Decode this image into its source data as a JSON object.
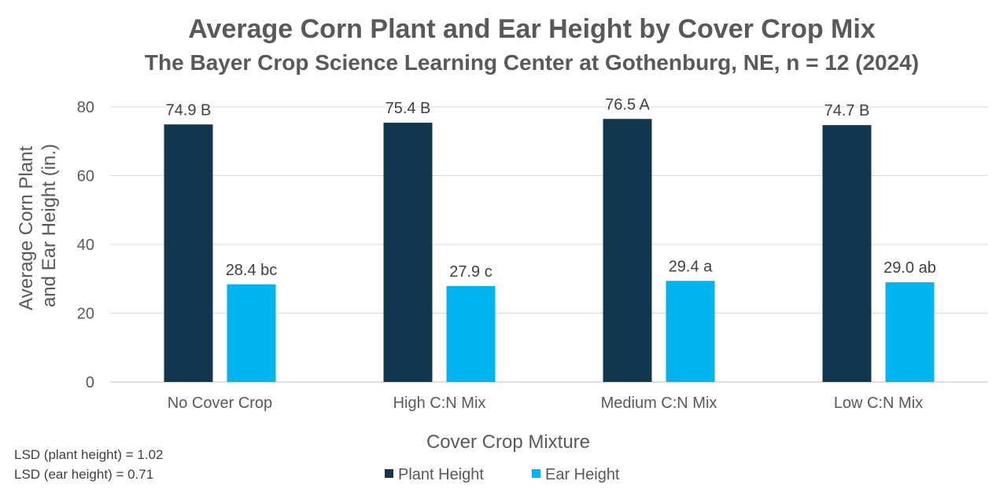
{
  "chart_data": {
    "type": "bar",
    "title": "Average Corn Plant and Ear Height by Cover Crop Mix",
    "subtitle": "The Bayer Crop Science Learning Center at Gothenburg, NE, n = 12 (2024)",
    "xlabel": "Cover Crop Mixture",
    "ylabel_lines": [
      "Average Corn Plant",
      "and Ear Height (in.)"
    ],
    "ylim": [
      0,
      80
    ],
    "yticks": [
      0,
      20,
      40,
      60,
      80
    ],
    "grid": true,
    "legend_position": "bottom",
    "categories": [
      "No Cover Crop",
      "High C:N Mix",
      "Medium C:N Mix",
      "Low C:N Mix"
    ],
    "series": [
      {
        "name": "Plant Height",
        "color": "#10374d",
        "values": [
          74.9,
          75.4,
          76.5,
          74.7
        ],
        "labels": [
          "74.9 B",
          "75.4 B",
          "76.5 A",
          "74.7 B"
        ]
      },
      {
        "name": "Ear Height",
        "color": "#00b4f0",
        "values": [
          28.4,
          27.9,
          29.4,
          29.0
        ],
        "labels": [
          "28.4 bc",
          "27.9 c",
          "29.4 a",
          "29.0 ab"
        ]
      }
    ],
    "annotations": [
      "LSD (plant height) = 1.02",
      "LSD (ear height) = 0.71"
    ]
  }
}
